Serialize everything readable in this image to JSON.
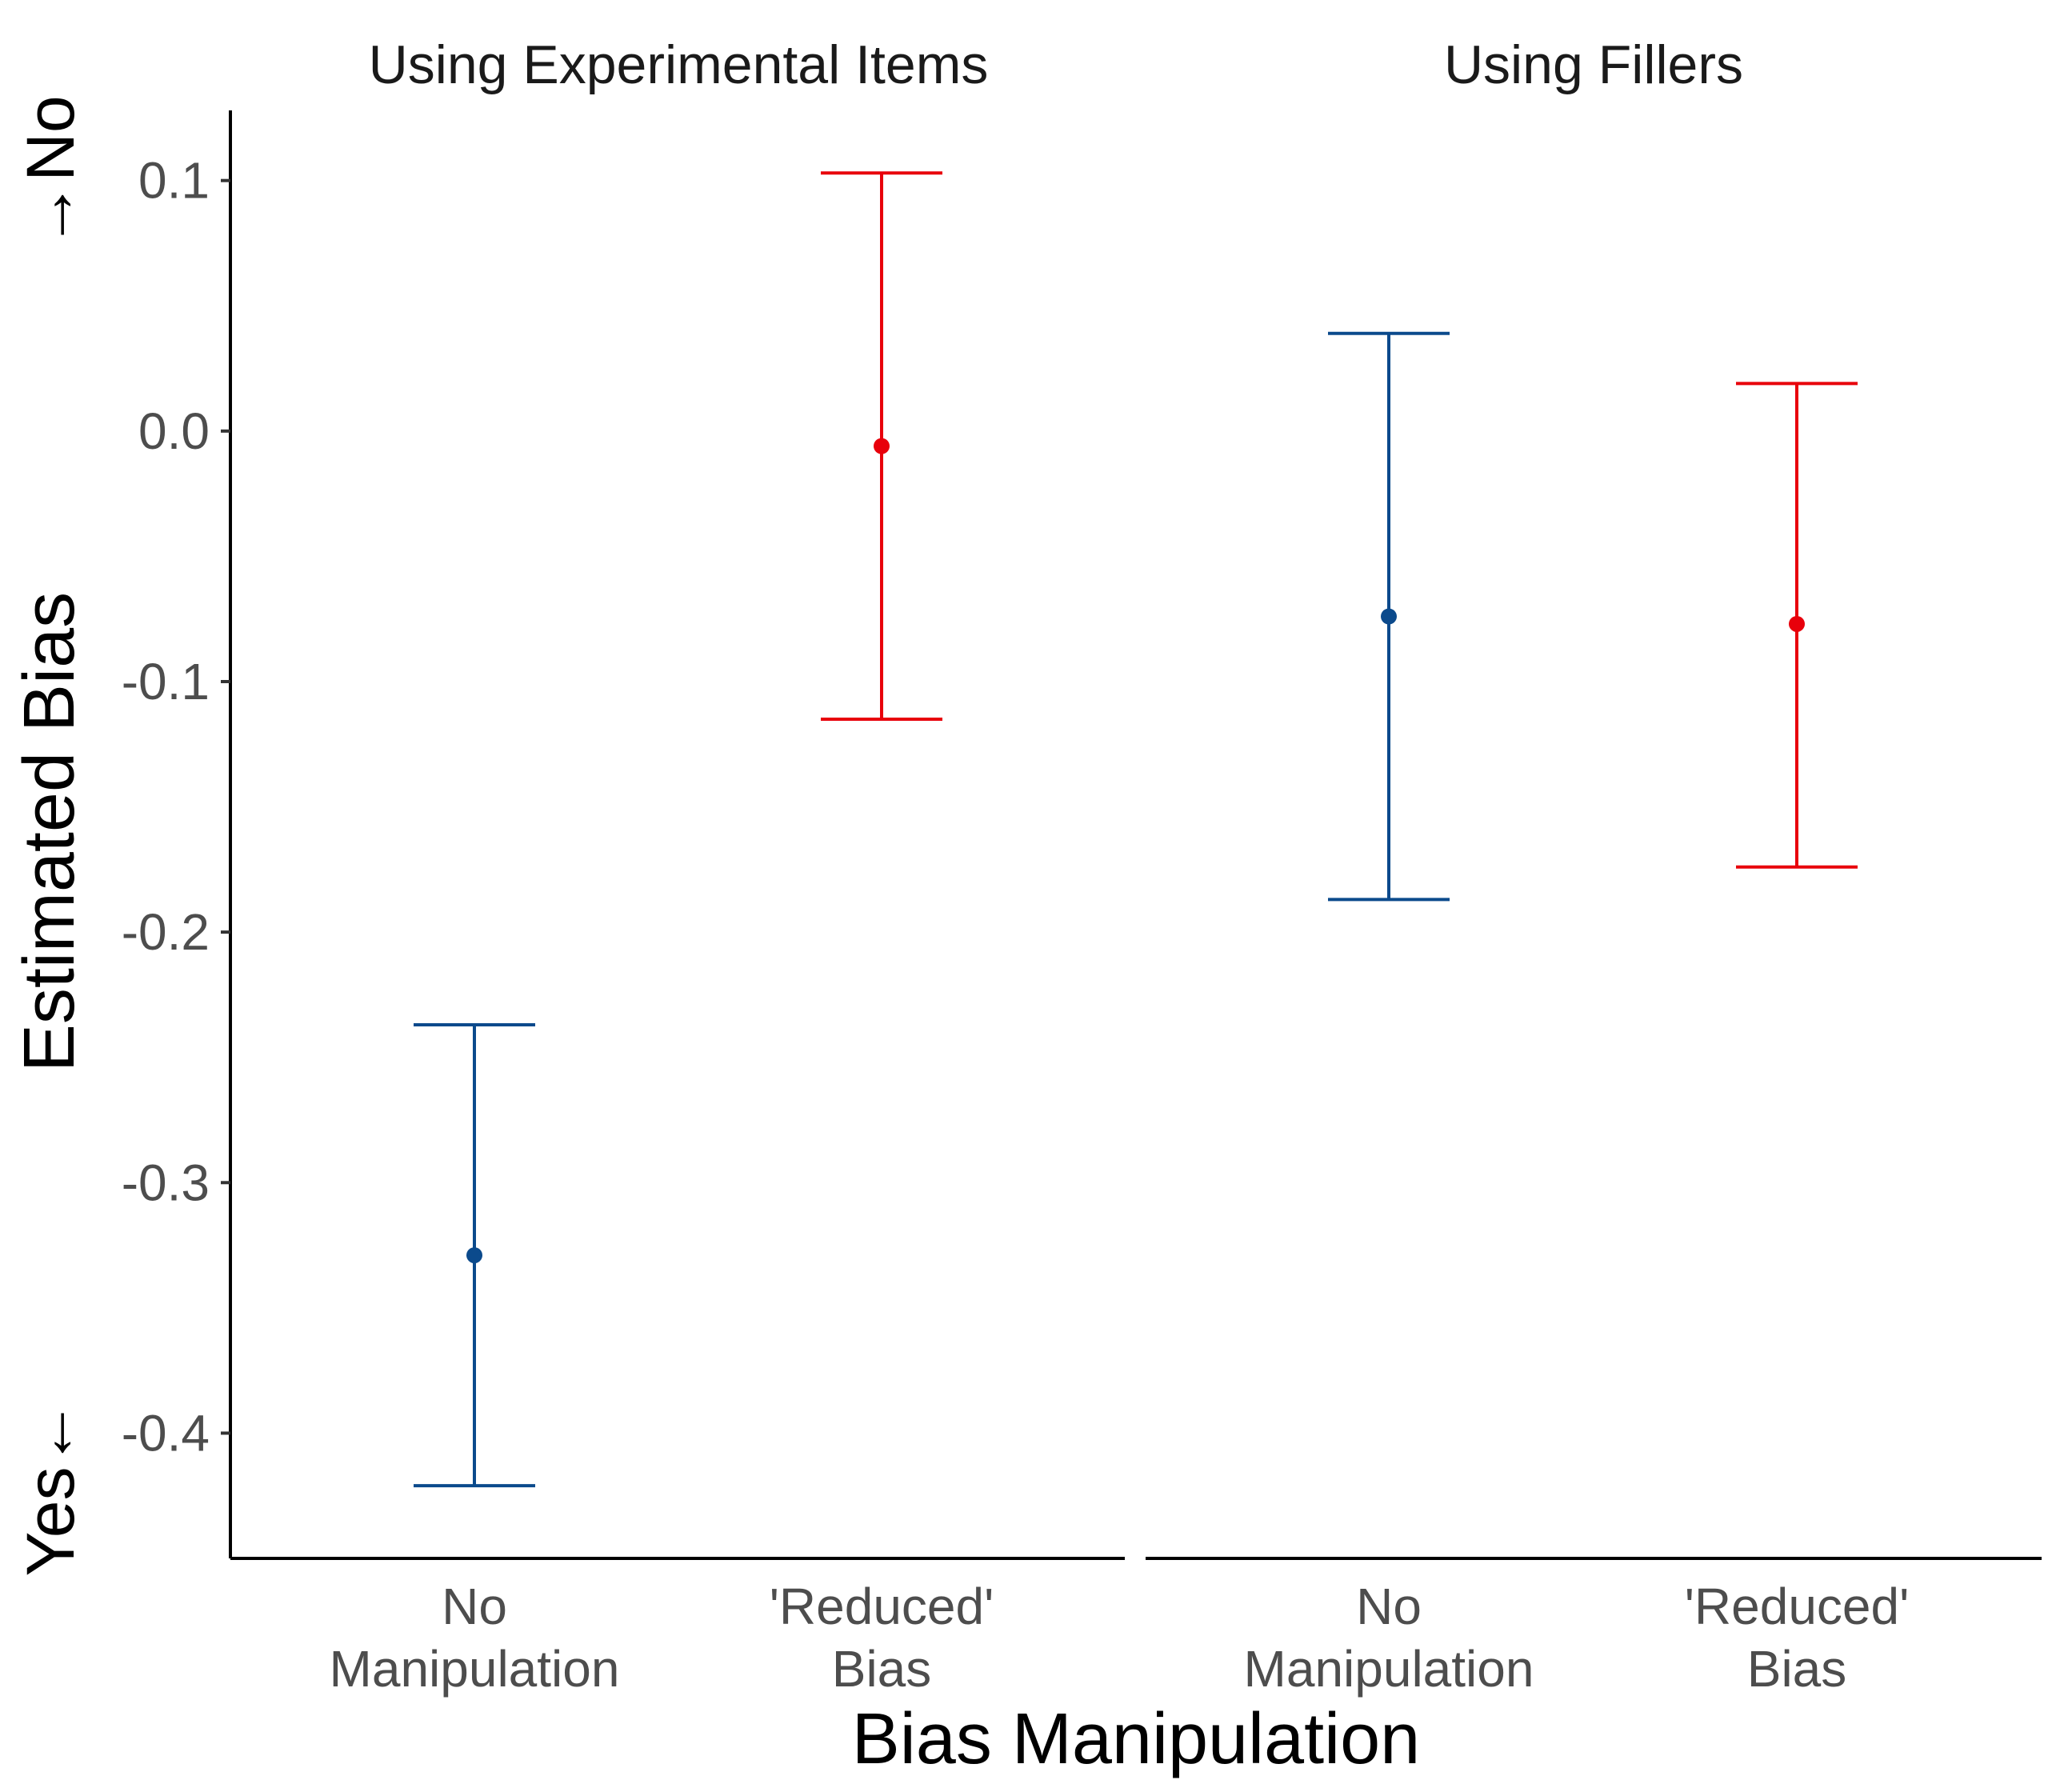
{
  "chart_data": {
    "type": "errorbar",
    "xlabel": "Bias Manipulation",
    "ylabel": "Estimated Bias",
    "direction_labels": {
      "top": "→No",
      "bottom": "Yes←"
    },
    "ylim": [
      -0.45,
      0.128
    ],
    "yticks": [
      "0.1",
      "0.0",
      "-0.1",
      "-0.2",
      "-0.3",
      "-0.4"
    ],
    "ytick_values": [
      0.1,
      0.0,
      -0.1,
      -0.2,
      -0.3,
      -0.4
    ],
    "grid": false,
    "legend": "none",
    "categories": [
      {
        "line1": "No",
        "line2": "Manipulation"
      },
      {
        "line1": "'Reduced'",
        "line2": "Bias"
      }
    ],
    "category_colors": [
      "#0b4a8c",
      "#e8000b"
    ],
    "panels": [
      {
        "title": "Using Experimental Items",
        "points": [
          {
            "estimate": -0.329,
            "lower": -0.421,
            "upper": -0.237
          },
          {
            "estimate": -0.006,
            "lower": -0.115,
            "upper": 0.103
          }
        ]
      },
      {
        "title": "Using Fillers",
        "points": [
          {
            "estimate": -0.074,
            "lower": -0.187,
            "upper": 0.039
          },
          {
            "estimate": -0.077,
            "lower": -0.174,
            "upper": 0.019
          }
        ]
      }
    ]
  }
}
